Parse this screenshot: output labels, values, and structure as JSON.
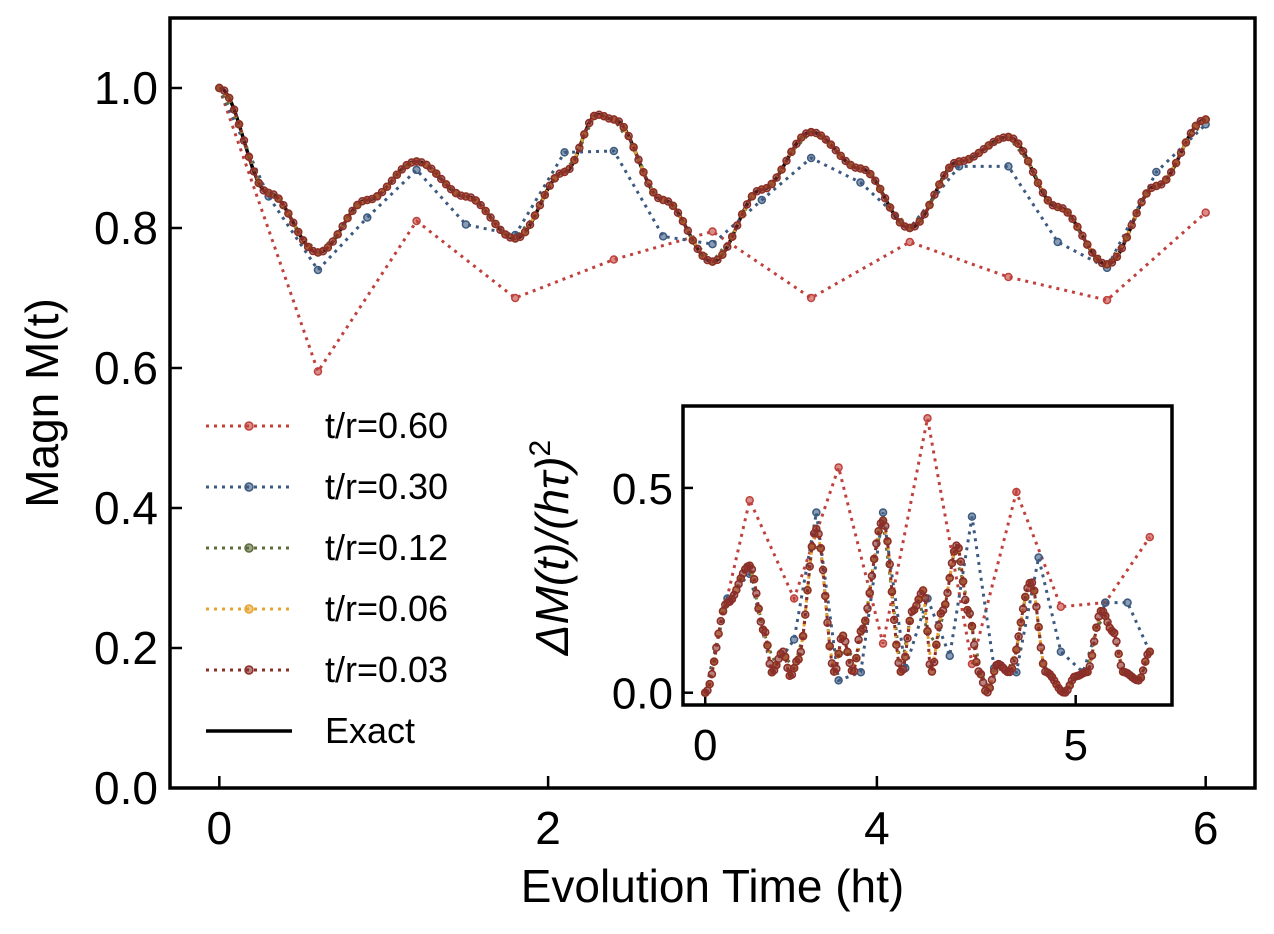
{
  "chart_data": [
    {
      "type": "line",
      "title": "",
      "xlabel": "Evolution Time (ht)",
      "ylabel": "Magn M(t)",
      "xlim": [
        -0.3,
        6.3
      ],
      "ylim": [
        0.0,
        1.1
      ],
      "xticks": [
        0,
        2,
        4,
        6
      ],
      "xtick_labels": [
        "0",
        "2",
        "4",
        "6"
      ],
      "yticks": [
        0.0,
        0.2,
        0.4,
        0.6,
        0.8,
        1.0
      ],
      "ytick_labels": [
        "0.0",
        "0.2",
        "0.4",
        "0.6",
        "0.8",
        "1.0"
      ],
      "legend_position": "lower-left",
      "series": [
        {
          "name": "t/r=0.60",
          "color": "#c0413c",
          "style": "dotted-markers",
          "x": [
            0,
            0.6,
            1.2,
            1.8,
            2.4,
            3.0,
            3.6,
            4.2,
            4.8,
            5.4,
            6.0
          ],
          "y": [
            1.0,
            0.595,
            0.81,
            0.7,
            0.755,
            0.795,
            0.7,
            0.78,
            0.73,
            0.697,
            0.822
          ]
        },
        {
          "name": "t/r=0.30",
          "color": "#3c5a80",
          "style": "dotted-markers",
          "x": [
            0,
            0.3,
            0.6,
            0.9,
            1.2,
            1.5,
            1.8,
            2.1,
            2.4,
            2.7,
            3.0,
            3.3,
            3.6,
            3.9,
            4.2,
            4.5,
            4.8,
            5.1,
            5.4,
            5.7,
            6.0
          ],
          "y": [
            1.0,
            0.845,
            0.74,
            0.815,
            0.883,
            0.805,
            0.79,
            0.908,
            0.91,
            0.788,
            0.777,
            0.84,
            0.9,
            0.865,
            0.8,
            0.888,
            0.888,
            0.78,
            0.743,
            0.88,
            0.948
          ]
        },
        {
          "name": "t/r=0.12",
          "color": "#5e6b3a",
          "style": "dotted-markers",
          "dt": 0.12,
          "x_range": [
            0,
            6
          ],
          "follows": "Exact"
        },
        {
          "name": "t/r=0.06",
          "color": "#e5a431",
          "style": "dotted-markers",
          "dt": 0.06,
          "x_range": [
            0,
            6
          ],
          "follows": "Exact"
        },
        {
          "name": "t/r=0.03",
          "color": "#8b2e2a",
          "style": "dotted-markers",
          "dt": 0.03,
          "x_range": [
            0,
            6
          ],
          "follows": "Exact"
        },
        {
          "name": "Exact",
          "color": "#000000",
          "style": "solid",
          "x": [
            0,
            0.3,
            0.6,
            0.9,
            1.2,
            1.5,
            1.8,
            2.1,
            2.3,
            2.4,
            2.7,
            3.0,
            3.3,
            3.6,
            3.9,
            4.2,
            4.5,
            4.8,
            5.1,
            5.4,
            5.7,
            6.0
          ],
          "y": [
            1.0,
            0.85,
            0.765,
            0.84,
            0.895,
            0.845,
            0.785,
            0.88,
            0.962,
            0.955,
            0.84,
            0.752,
            0.855,
            0.937,
            0.885,
            0.8,
            0.895,
            0.93,
            0.83,
            0.748,
            0.86,
            0.955
          ]
        }
      ]
    },
    {
      "type": "line",
      "title": "",
      "xlabel": "",
      "ylabel": "ΔM(t)/(hτ)",
      "ylabel_superscript": "2",
      "xlim": [
        -0.3,
        6.3
      ],
      "ylim": [
        -0.03,
        0.7
      ],
      "xticks": [
        0,
        5
      ],
      "xtick_labels": [
        "0",
        "5"
      ],
      "yticks": [
        0.0,
        0.5
      ],
      "ytick_labels": [
        "0.0",
        "0.5"
      ],
      "series": [
        {
          "name": "t/r=0.60",
          "color": "#c0413c",
          "x": [
            0,
            0.6,
            1.2,
            1.8,
            2.4,
            3.0,
            3.6,
            4.2,
            4.8,
            5.4,
            6.0
          ],
          "y": [
            0,
            0.47,
            0.23,
            0.55,
            0.12,
            0.67,
            0.07,
            0.49,
            0.21,
            0.22,
            0.38
          ]
        },
        {
          "name": "t/r=0.30",
          "color": "#3c5a80",
          "x": [
            0,
            0.3,
            0.6,
            0.9,
            1.2,
            1.5,
            1.8,
            2.1,
            2.4,
            2.7,
            3.0,
            3.3,
            3.6,
            3.9,
            4.2,
            4.5,
            4.8,
            5.1,
            5.4,
            5.7,
            6.0
          ],
          "y": [
            0,
            0.23,
            0.29,
            0.05,
            0.13,
            0.44,
            0.03,
            0.05,
            0.44,
            0.06,
            0.23,
            0.09,
            0.43,
            0.06,
            0.05,
            0.33,
            0.1,
            0.05,
            0.22,
            0.22,
            0.1
          ]
        },
        {
          "name": "t/r=0.12",
          "color": "#5e6b3a",
          "dt": 0.12,
          "x_range": [
            0,
            6
          ],
          "follows": "t/r=0.03"
        },
        {
          "name": "t/r=0.06",
          "color": "#e5a431",
          "dt": 0.06,
          "x_range": [
            0,
            6
          ],
          "follows": "t/r=0.03"
        },
        {
          "name": "t/r=0.03",
          "color": "#8b2e2a",
          "x": [
            0,
            0.3,
            0.6,
            0.8,
            0.9,
            1.05,
            1.15,
            1.25,
            1.5,
            1.75,
            1.85,
            2.0,
            2.1,
            2.4,
            2.65,
            2.8,
            2.95,
            3.05,
            3.2,
            3.4,
            3.55,
            3.7,
            3.8,
            3.95,
            4.1,
            4.4,
            4.6,
            4.85,
            5.0,
            5.15,
            5.35,
            5.5,
            5.65,
            5.85,
            6.0
          ],
          "y": [
            0,
            0.22,
            0.31,
            0.15,
            0.05,
            0.1,
            0.04,
            0.08,
            0.4,
            0.05,
            0.14,
            0.05,
            0.15,
            0.42,
            0.05,
            0.2,
            0.25,
            0.05,
            0.2,
            0.36,
            0.2,
            0.05,
            0.0,
            0.07,
            0.05,
            0.27,
            0.05,
            0.0,
            0.04,
            0.05,
            0.2,
            0.15,
            0.05,
            0.03,
            0.1
          ]
        }
      ]
    }
  ]
}
